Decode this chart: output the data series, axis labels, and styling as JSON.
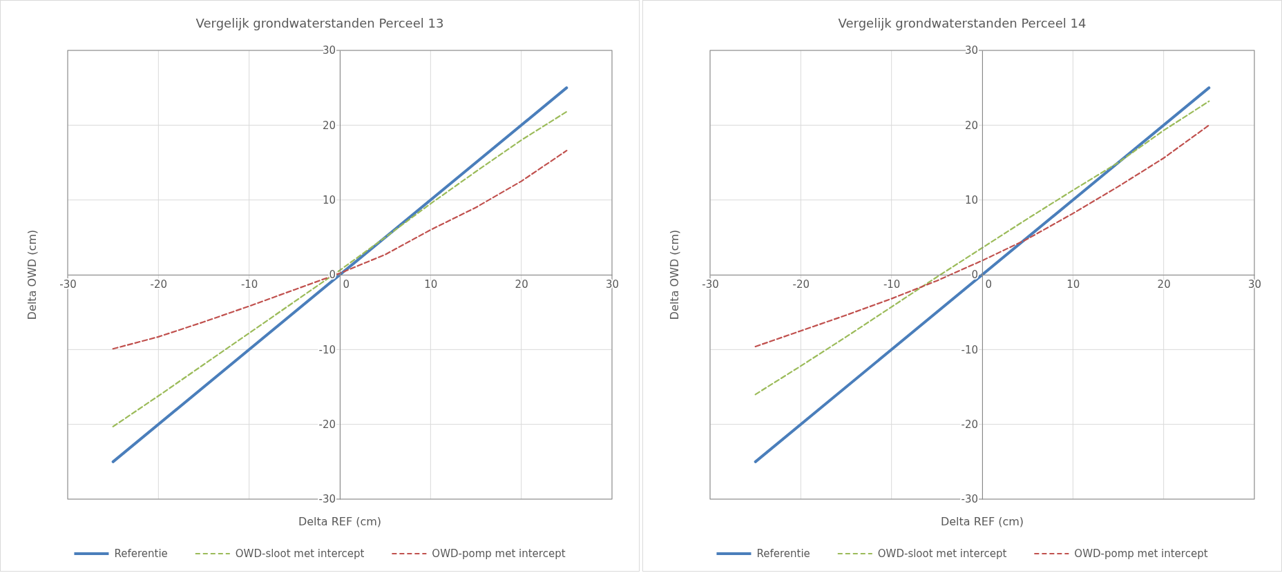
{
  "chart_data": [
    {
      "type": "line",
      "title": "Vergelijk grondwaterstanden Perceel 13",
      "xlabel": "Delta REF (cm)",
      "ylabel": "Delta OWD (cm)",
      "xlim": [
        -30,
        30
      ],
      "ylim": [
        -30,
        30
      ],
      "xticks": [
        -30,
        -20,
        -10,
        0,
        10,
        20,
        30
      ],
      "yticks": [
        -30,
        -20,
        -10,
        0,
        10,
        20,
        30
      ],
      "grid": true,
      "legend": "bottom",
      "series": [
        {
          "name": "Referentie",
          "color": "#4a7ebb",
          "line_style": "solid",
          "x": [
            -25,
            25
          ],
          "values": [
            -25,
            25
          ]
        },
        {
          "name": "OWD-sloot met intercept",
          "color": "#9bbb59",
          "line_style": "dashed",
          "x": [
            -25,
            -20,
            -15,
            -10,
            -5,
            0,
            5,
            10,
            15,
            20,
            25
          ],
          "values": [
            -20.3,
            -16.2,
            -12,
            -7.8,
            -3.6,
            0.6,
            5,
            9.5,
            13.8,
            18,
            21.8
          ]
        },
        {
          "name": "OWD-pomp met intercept",
          "color": "#c0504d",
          "line_style": "dashed",
          "x": [
            -25,
            -20,
            -15,
            -10,
            -5,
            0,
            5,
            10,
            15,
            20,
            25
          ],
          "values": [
            -9.9,
            -8.3,
            -6.3,
            -4.2,
            -2,
            0.2,
            2.7,
            6,
            9,
            12.5,
            16.6
          ]
        }
      ]
    },
    {
      "type": "line",
      "title": "Vergelijk grondwaterstanden Perceel 14",
      "xlabel": "Delta REF (cm)",
      "ylabel": "Delta OWD (cm)",
      "xlim": [
        -30,
        30
      ],
      "ylim": [
        -30,
        30
      ],
      "xticks": [
        -30,
        -20,
        -10,
        0,
        10,
        20,
        30
      ],
      "yticks": [
        -30,
        -20,
        -10,
        0,
        10,
        20,
        30
      ],
      "grid": true,
      "legend": "bottom",
      "series": [
        {
          "name": "Referentie",
          "color": "#4a7ebb",
          "line_style": "solid",
          "x": [
            -25,
            25
          ],
          "values": [
            -25,
            25
          ]
        },
        {
          "name": "OWD-sloot met intercept",
          "color": "#9bbb59",
          "line_style": "dashed",
          "x": [
            -25,
            -20,
            -15,
            -10,
            -5,
            0,
            5,
            10,
            15,
            20,
            25
          ],
          "values": [
            -16,
            -12.2,
            -8.3,
            -4.3,
            -0.3,
            3.6,
            7.5,
            11.3,
            15,
            19.3,
            23.2
          ]
        },
        {
          "name": "OWD-pomp met intercept",
          "color": "#c0504d",
          "line_style": "dashed",
          "x": [
            -25,
            -20,
            -15,
            -10,
            -5,
            0,
            5,
            10,
            15,
            20,
            25
          ],
          "values": [
            -9.6,
            -7.5,
            -5.4,
            -3.2,
            -0.8,
            1.9,
            4.8,
            8.2,
            11.8,
            15.6,
            20
          ]
        }
      ]
    }
  ]
}
